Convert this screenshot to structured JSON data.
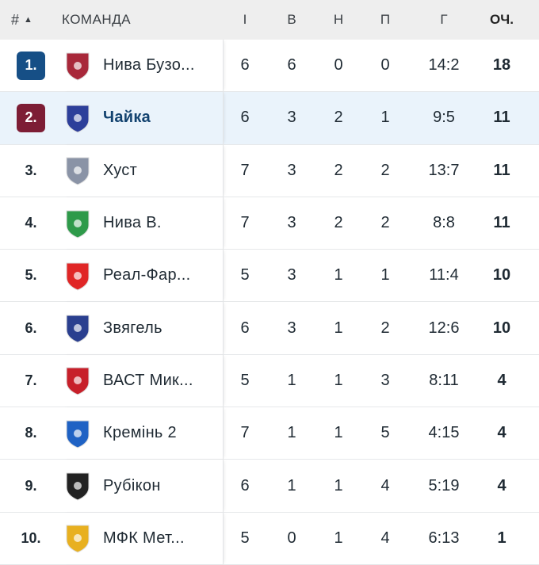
{
  "header": {
    "pos": "#",
    "sort_icon": "triangle-up-icon",
    "team": "КОМАНДА",
    "played": "І",
    "won": "В",
    "drawn": "Н",
    "lost": "П",
    "goals": "Г",
    "points": "ОЧ."
  },
  "colors": {
    "rank1": "#164f86",
    "rank2": "#7d1d35",
    "highlight": "#eaf3fb"
  },
  "rows": [
    {
      "pos": "1.",
      "team": "Нива Бузо...",
      "p": "6",
      "w": "6",
      "d": "0",
      "l": "0",
      "g": "14:2",
      "pts": "18",
      "badge": "#164f86",
      "logo": "#a8283a"
    },
    {
      "pos": "2.",
      "team": "Чайка",
      "p": "6",
      "w": "3",
      "d": "2",
      "l": "1",
      "g": "9:5",
      "pts": "11",
      "badge": "#7d1d35",
      "logo": "#2d3f9a",
      "highlight": true
    },
    {
      "pos": "3.",
      "team": "Хуст",
      "p": "7",
      "w": "3",
      "d": "2",
      "l": "2",
      "g": "13:7",
      "pts": "11",
      "logo": "#8a93a6"
    },
    {
      "pos": "4.",
      "team": "Нива В.",
      "p": "7",
      "w": "3",
      "d": "2",
      "l": "2",
      "g": "8:8",
      "pts": "11",
      "logo": "#2e9a4a"
    },
    {
      "pos": "5.",
      "team": "Реал-Фар...",
      "p": "5",
      "w": "3",
      "d": "1",
      "l": "1",
      "g": "11:4",
      "pts": "10",
      "logo": "#e02626"
    },
    {
      "pos": "6.",
      "team": "Звягель",
      "p": "6",
      "w": "3",
      "d": "1",
      "l": "2",
      "g": "12:6",
      "pts": "10",
      "logo": "#2a3f8f"
    },
    {
      "pos": "7.",
      "team": "ВАСТ Мик...",
      "p": "5",
      "w": "1",
      "d": "1",
      "l": "3",
      "g": "8:11",
      "pts": "4",
      "logo": "#c7202a"
    },
    {
      "pos": "8.",
      "team": "Кремінь 2",
      "p": "7",
      "w": "1",
      "d": "1",
      "l": "5",
      "g": "4:15",
      "pts": "4",
      "logo": "#1f62c4"
    },
    {
      "pos": "9.",
      "team": "Рубікон",
      "p": "6",
      "w": "1",
      "d": "1",
      "l": "4",
      "g": "5:19",
      "pts": "4",
      "logo": "#222222"
    },
    {
      "pos": "10.",
      "team": "МФК Мет...",
      "p": "5",
      "w": "0",
      "d": "1",
      "l": "4",
      "g": "6:13",
      "pts": "1",
      "logo": "#e8b020"
    }
  ]
}
